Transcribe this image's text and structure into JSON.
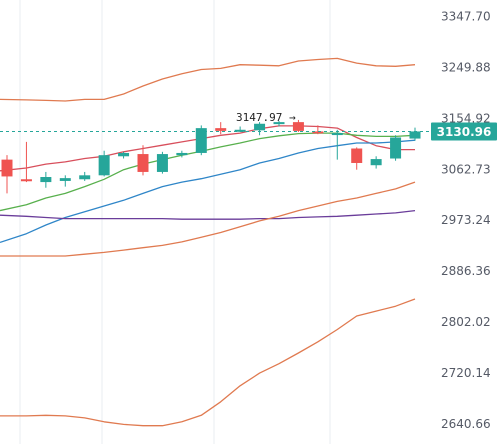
{
  "chart_data": {
    "type": "candlestick",
    "y_axis": {
      "ticks": [
        "3347.70",
        "3249.88",
        "3154.92",
        "3062.73",
        "2973.24",
        "2886.36",
        "2802.02",
        "2720.14",
        "2640.66"
      ],
      "ylim": [
        2610,
        3380
      ],
      "scale": "log",
      "position": "right"
    },
    "grid": "vertical-only",
    "last_price": {
      "value": 3130.96,
      "label": "3130.96",
      "color": "#26a69a"
    },
    "peak_marker": {
      "label": "3147.97 →",
      "value": 3147.97
    },
    "colors": {
      "up": "#26a69a",
      "down": "#ef5350",
      "background": "#ffffff",
      "grid": "#e9ecf2"
    },
    "candles": [
      {
        "o": 3080,
        "h": 3088,
        "l": 3020,
        "c": 3050
      },
      {
        "o": 3045,
        "h": 3112,
        "l": 3040,
        "c": 3042
      },
      {
        "o": 3040,
        "h": 3058,
        "l": 3030,
        "c": 3049
      },
      {
        "o": 3042,
        "h": 3052,
        "l": 3032,
        "c": 3047
      },
      {
        "o": 3045,
        "h": 3058,
        "l": 3042,
        "c": 3052
      },
      {
        "o": 3052,
        "h": 3096,
        "l": 3050,
        "c": 3088
      },
      {
        "o": 3086,
        "h": 3094,
        "l": 3082,
        "c": 3092
      },
      {
        "o": 3090,
        "h": 3106,
        "l": 3052,
        "c": 3058
      },
      {
        "o": 3058,
        "h": 3094,
        "l": 3055,
        "c": 3090
      },
      {
        "o": 3088,
        "h": 3096,
        "l": 3084,
        "c": 3092
      },
      {
        "o": 3092,
        "h": 3142,
        "l": 3088,
        "c": 3137
      },
      {
        "o": 3137,
        "h": 3148,
        "l": 3126,
        "c": 3132
      },
      {
        "o": 3132,
        "h": 3140,
        "l": 3130,
        "c": 3134
      },
      {
        "o": 3133,
        "h": 3148,
        "l": 3124,
        "c": 3145
      },
      {
        "o": 3146,
        "h": 3150,
        "l": 3140,
        "c": 3148
      },
      {
        "o": 3148,
        "h": 3152,
        "l": 3130,
        "c": 3132
      },
      {
        "o": 3131,
        "h": 3142,
        "l": 3126,
        "c": 3128
      },
      {
        "o": 3128,
        "h": 3134,
        "l": 3080,
        "c": 3128
      },
      {
        "o": 3100,
        "h": 3102,
        "l": 3062,
        "c": 3074
      },
      {
        "o": 3070,
        "h": 3086,
        "l": 3064,
        "c": 3081
      },
      {
        "o": 3082,
        "h": 3124,
        "l": 3078,
        "c": 3120
      },
      {
        "o": 3118,
        "h": 3138,
        "l": 3114,
        "c": 3130.96
      }
    ],
    "series": [
      {
        "color": "#e07a50",
        "values": [
          3190,
          3189,
          3188,
          3187,
          3190,
          3190,
          3200,
          3215,
          3228,
          3238,
          3246,
          3248,
          3255,
          3254,
          3253,
          3262,
          3265,
          3267,
          3258,
          3253,
          3252,
          3255
        ]
      },
      {
        "color": "#d84f5c",
        "values": [
          3060,
          3065,
          3072,
          3076,
          3082,
          3086,
          3094,
          3100,
          3106,
          3112,
          3118,
          3124,
          3128,
          3136,
          3141,
          3141,
          3140,
          3137,
          3120,
          3105,
          3098,
          3098
        ]
      },
      {
        "color": "#58b04d",
        "values": [
          2990,
          3000,
          3012,
          3020,
          3032,
          3045,
          3062,
          3072,
          3080,
          3088,
          3095,
          3103,
          3110,
          3118,
          3123,
          3127,
          3128,
          3128,
          3124,
          3122,
          3122,
          3124
        ]
      },
      {
        "color": "#2f86c8",
        "values": [
          2935,
          2950,
          2965,
          2978,
          2988,
          2998,
          3008,
          3020,
          3032,
          3040,
          3046,
          3054,
          3062,
          3074,
          3082,
          3092,
          3100,
          3105,
          3110,
          3110,
          3112,
          3115
        ]
      },
      {
        "color": "#6a3d9a",
        "values": [
          2982,
          2980,
          2978,
          2976,
          2976,
          2976,
          2976,
          2976,
          2976,
          2975,
          2975,
          2975,
          2975,
          2976,
          2976,
          2978,
          2979,
          2980,
          2982,
          2984,
          2986,
          2990
        ]
      },
      {
        "color": "#e07a50",
        "values": [
          2912,
          2912,
          2912,
          2912,
          2915,
          2918,
          2922,
          2926,
          2930,
          2936,
          2944,
          2952,
          2962,
          2972,
          2980,
          2990,
          2998,
          3006,
          3012,
          3020,
          3028,
          3040
        ]
      },
      {
        "color": "#e07a50",
        "values": [
          2653,
          2653,
          2654,
          2653,
          2650,
          2644,
          2640,
          2638,
          2638,
          2644,
          2654,
          2675,
          2700,
          2720,
          2735,
          2752,
          2770,
          2790,
          2812,
          2820,
          2828,
          2840
        ]
      }
    ]
  }
}
